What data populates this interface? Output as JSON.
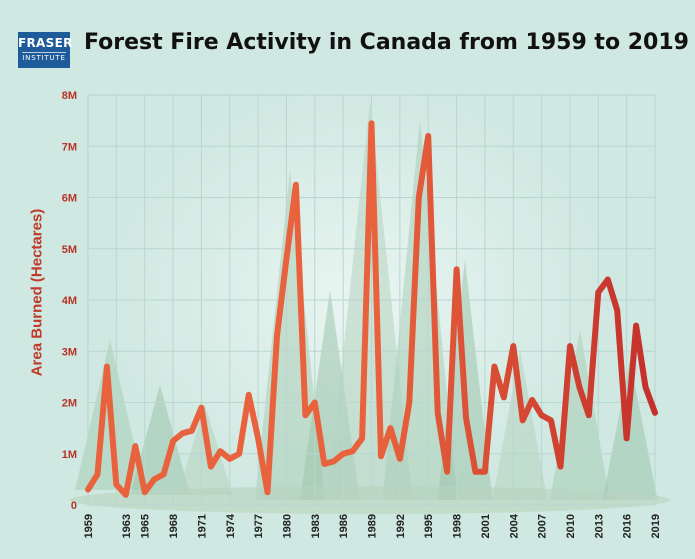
{
  "logo": {
    "line1": "FRASER",
    "line2": "INSTITUTE"
  },
  "colors": {
    "background": "#cfe8e1",
    "line_light": "#e8633d",
    "line_dark": "#c4302a",
    "axis_text": "#b83226",
    "grid": "#b9d6cf",
    "logo_bg": "#1e5b9a"
  },
  "chart_data": {
    "type": "line",
    "title": "Forest Fire Activity in Canada from 1959 to 2019",
    "xlabel": "",
    "ylabel": "Area Burned (Hectares)",
    "ylim": [
      0,
      8000000
    ],
    "grid": true,
    "y_ticks": [
      0,
      1000000,
      2000000,
      3000000,
      4000000,
      5000000,
      6000000,
      7000000,
      8000000
    ],
    "y_tick_labels": [
      "0",
      "1M",
      "2M",
      "3M",
      "4M",
      "5M",
      "6M",
      "7M",
      "8M"
    ],
    "x_ticks": [
      1959,
      1963,
      1965,
      1968,
      1971,
      1974,
      1977,
      1980,
      1983,
      1986,
      1989,
      1992,
      1995,
      1998,
      2001,
      2004,
      2007,
      2010,
      2013,
      2016,
      2019
    ],
    "x_tick_labels": [
      "1959",
      "1963",
      "1965",
      "1968",
      "1971",
      "1974",
      "1977",
      "1980",
      "1983",
      "1986",
      "1989",
      "1992",
      "1995",
      "1998",
      "2001",
      "2004",
      "2007",
      "2010",
      "2013",
      "2016",
      "2019"
    ],
    "series": [
      {
        "x": [
          1959,
          1960,
          1961,
          1962,
          1963,
          1964,
          1965,
          1966,
          1967,
          1968,
          1969,
          1970,
          1971,
          1972,
          1973,
          1974,
          1975,
          1976,
          1977,
          1978,
          1979,
          1980,
          1981,
          1982,
          1983,
          1984,
          1985,
          1986,
          1987,
          1988,
          1989,
          1990,
          1991,
          1992,
          1993,
          1994,
          1995,
          1996,
          1997,
          1998,
          1999,
          2000,
          2001,
          2002,
          2003,
          2004,
          2005,
          2006,
          2007,
          2008,
          2009,
          2010,
          2011,
          2012,
          2013,
          2014,
          2015,
          2016,
          2017,
          2018,
          2019
        ],
        "values": [
          300000,
          600000,
          2700000,
          400000,
          200000,
          1150000,
          250000,
          500000,
          600000,
          1250000,
          1400000,
          1450000,
          1900000,
          750000,
          1050000,
          900000,
          1000000,
          2150000,
          1300000,
          250000,
          3300000,
          4800000,
          6250000,
          1750000,
          2000000,
          800000,
          850000,
          1000000,
          1050000,
          1300000,
          7450000,
          950000,
          1500000,
          900000,
          2000000,
          6000000,
          7200000,
          1800000,
          650000,
          4600000,
          1700000,
          650000,
          650000,
          2700000,
          2100000,
          3100000,
          1650000,
          2050000,
          1750000,
          1650000,
          750000,
          3100000,
          2300000,
          1750000,
          4150000,
          4400000,
          3800000,
          1300000,
          3500000,
          2300000,
          1800000
        ]
      }
    ]
  }
}
